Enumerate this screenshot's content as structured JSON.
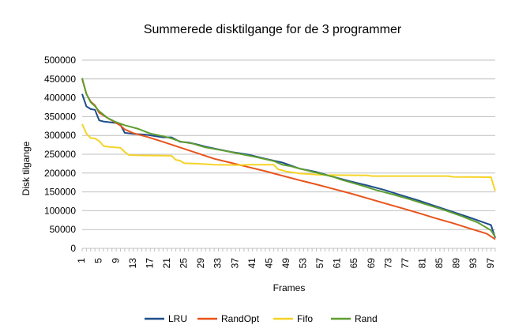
{
  "chart_data": {
    "type": "line",
    "title": "Summerede disktilgange for de 3 programmer",
    "xlabel": "Frames",
    "ylabel": "Disk tilgange",
    "xlim": [
      1,
      98
    ],
    "ylim": [
      0,
      500000
    ],
    "y_ticks": [
      0,
      50000,
      100000,
      150000,
      200000,
      250000,
      300000,
      350000,
      400000,
      450000,
      500000
    ],
    "x_ticks": [
      1,
      5,
      9,
      13,
      17,
      21,
      25,
      29,
      33,
      37,
      41,
      45,
      49,
      53,
      57,
      61,
      65,
      69,
      73,
      77,
      81,
      85,
      89,
      93,
      97
    ],
    "grid": "horizontal",
    "legend_position": "bottom",
    "series": [
      {
        "name": "LRU",
        "color": "#1f4e8c",
        "points": [
          [
            1,
            410000
          ],
          [
            2,
            377000
          ],
          [
            3,
            370000
          ],
          [
            4,
            368000
          ],
          [
            5,
            340000
          ],
          [
            6,
            337000
          ],
          [
            9,
            333000
          ],
          [
            10,
            328000
          ],
          [
            11,
            307000
          ],
          [
            13,
            304000
          ],
          [
            16,
            302000
          ],
          [
            20,
            295000
          ],
          [
            22,
            295000
          ],
          [
            24,
            283000
          ],
          [
            26,
            281000
          ],
          [
            28,
            276000
          ],
          [
            30,
            270000
          ],
          [
            33,
            263000
          ],
          [
            36,
            256000
          ],
          [
            40,
            249000
          ],
          [
            44,
            238000
          ],
          [
            48,
            228000
          ],
          [
            52,
            212000
          ],
          [
            56,
            203000
          ],
          [
            60,
            190000
          ],
          [
            64,
            178000
          ],
          [
            68,
            167000
          ],
          [
            72,
            155000
          ],
          [
            76,
            141000
          ],
          [
            80,
            127000
          ],
          [
            84,
            112000
          ],
          [
            88,
            97000
          ],
          [
            92,
            82000
          ],
          [
            96,
            66000
          ],
          [
            97,
            62000
          ],
          [
            98,
            28000
          ]
        ]
      },
      {
        "name": "RandOpt",
        "color": "#e8541c",
        "points": [
          [
            1,
            450000
          ],
          [
            2,
            410000
          ],
          [
            3,
            390000
          ],
          [
            4,
            380000
          ],
          [
            5,
            360000
          ],
          [
            7,
            346000
          ],
          [
            9,
            333000
          ],
          [
            10,
            326000
          ],
          [
            11,
            316000
          ],
          [
            13,
            306000
          ],
          [
            16,
            297000
          ],
          [
            20,
            283000
          ],
          [
            24,
            268000
          ],
          [
            28,
            253000
          ],
          [
            32,
            238000
          ],
          [
            36,
            227000
          ],
          [
            40,
            216000
          ],
          [
            44,
            205000
          ],
          [
            48,
            193000
          ],
          [
            52,
            181000
          ],
          [
            56,
            170000
          ],
          [
            60,
            158000
          ],
          [
            64,
            146000
          ],
          [
            68,
            133000
          ],
          [
            72,
            120000
          ],
          [
            76,
            107000
          ],
          [
            80,
            94000
          ],
          [
            84,
            80000
          ],
          [
            88,
            67000
          ],
          [
            92,
            53000
          ],
          [
            96,
            39000
          ],
          [
            98,
            24000
          ]
        ]
      },
      {
        "name": "Fifo",
        "color": "#f5d328",
        "points": [
          [
            1,
            330000
          ],
          [
            2,
            305000
          ],
          [
            3,
            293000
          ],
          [
            4,
            292000
          ],
          [
            5,
            285000
          ],
          [
            6,
            272000
          ],
          [
            7,
            270000
          ],
          [
            10,
            267000
          ],
          [
            11,
            256000
          ],
          [
            12,
            248000
          ],
          [
            14,
            247000
          ],
          [
            22,
            246000
          ],
          [
            23,
            235000
          ],
          [
            24,
            233000
          ],
          [
            25,
            226000
          ],
          [
            28,
            225000
          ],
          [
            31,
            223000
          ],
          [
            32,
            222000
          ],
          [
            38,
            221000
          ],
          [
            40,
            222000
          ],
          [
            46,
            222000
          ],
          [
            47,
            210000
          ],
          [
            49,
            204000
          ],
          [
            52,
            199000
          ],
          [
            56,
            196000
          ],
          [
            58,
            195000
          ],
          [
            68,
            194000
          ],
          [
            69,
            192000
          ],
          [
            87,
            192000
          ],
          [
            88,
            190000
          ],
          [
            97,
            189000
          ],
          [
            98,
            152000
          ]
        ]
      },
      {
        "name": "Rand",
        "color": "#5e9e2f",
        "points": [
          [
            1,
            452000
          ],
          [
            2,
            410000
          ],
          [
            3,
            388000
          ],
          [
            4,
            378000
          ],
          [
            5,
            364000
          ],
          [
            7,
            346000
          ],
          [
            9,
            335000
          ],
          [
            11,
            327000
          ],
          [
            14,
            318000
          ],
          [
            17,
            305000
          ],
          [
            20,
            298000
          ],
          [
            22,
            292000
          ],
          [
            24,
            284000
          ],
          [
            27,
            278000
          ],
          [
            30,
            268000
          ],
          [
            34,
            260000
          ],
          [
            38,
            251000
          ],
          [
            42,
            242000
          ],
          [
            46,
            232000
          ],
          [
            48,
            222000
          ],
          [
            50,
            218000
          ],
          [
            52,
            212000
          ],
          [
            56,
            201000
          ],
          [
            60,
            190000
          ],
          [
            62,
            182000
          ],
          [
            66,
            169000
          ],
          [
            70,
            155000
          ],
          [
            74,
            143000
          ],
          [
            78,
            130000
          ],
          [
            82,
            116000
          ],
          [
            86,
            102000
          ],
          [
            90,
            86000
          ],
          [
            94,
            68000
          ],
          [
            97,
            48000
          ],
          [
            98,
            30000
          ]
        ]
      }
    ]
  }
}
